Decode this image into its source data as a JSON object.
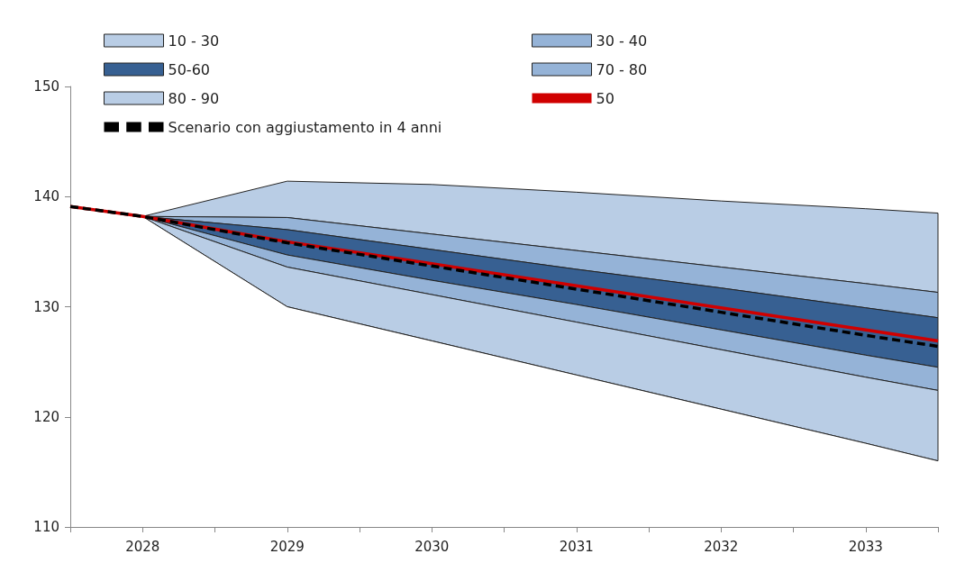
{
  "chart_data": {
    "type": "area",
    "xlim": [
      2027.5,
      2033.5
    ],
    "xticks": [
      {
        "value": 2027.5,
        "label": null
      },
      2028,
      {
        "value": 2028.5,
        "label": null
      },
      2029,
      {
        "value": 2029.5,
        "label": null
      },
      2030,
      {
        "value": 2030.5,
        "label": null
      },
      2031,
      {
        "value": 2031.5,
        "label": null
      },
      2032,
      {
        "value": 2032.5,
        "label": null
      },
      2033,
      {
        "value": 2033.5,
        "label": null
      }
    ],
    "ylim": [
      110,
      150
    ],
    "yticks": [
      110,
      120,
      130,
      140,
      150
    ],
    "grid": false,
    "legend": "top",
    "marker": "none",
    "series": [
      {
        "type": "area",
        "color": "#ffffff",
        "x": [
          2028,
          2029,
          2030,
          2031,
          2032,
          2033,
          2033.5
        ],
        "values": [
          138.2,
          130.0,
          126.9,
          123.8,
          120.7,
          117.6,
          116.0
        ]
      },
      {
        "name": "10 - 30",
        "type": "area",
        "color": "#b9cde5",
        "x": [
          2028,
          2029,
          2030,
          2031,
          2032,
          2033,
          2033.5
        ],
        "values": [
          138.2,
          133.6,
          131.1,
          128.6,
          126.1,
          123.6,
          122.4
        ]
      },
      {
        "name": "30 - 40",
        "type": "area",
        "color": "#95b3d7",
        "x": [
          2028,
          2029,
          2030,
          2031,
          2032,
          2033,
          2033.5
        ],
        "values": [
          138.2,
          134.7,
          132.4,
          130.2,
          127.9,
          125.6,
          124.5
        ]
      },
      {
        "name": "50-60",
        "type": "area",
        "color": "#376092",
        "x": [
          2028,
          2029,
          2030,
          2031,
          2032,
          2033,
          2033.5
        ],
        "values": [
          138.2,
          137.0,
          135.2,
          133.4,
          131.7,
          129.9,
          129.0
        ]
      },
      {
        "name": "70 - 80",
        "type": "area",
        "color": "#95b3d7",
        "x": [
          2028,
          2029,
          2030,
          2031,
          2032,
          2033,
          2033.5
        ],
        "values": [
          138.2,
          138.1,
          136.6,
          135.1,
          133.6,
          132.1,
          131.3
        ]
      },
      {
        "name": "80 - 90",
        "type": "area",
        "color": "#b9cde5",
        "x": [
          2028,
          2029,
          2030,
          2031,
          2032,
          2033,
          2033.5
        ],
        "values": [
          138.2,
          141.4,
          141.1,
          140.4,
          139.6,
          138.9,
          138.5
        ]
      },
      {
        "name": "50",
        "type": "line",
        "color": "#d00000",
        "line_style": "solid",
        "x": [
          2027.5,
          2028,
          2029,
          2030,
          2031,
          2032,
          2033,
          2033.5
        ],
        "values": [
          139.1,
          138.2,
          135.9,
          133.9,
          131.9,
          129.9,
          127.9,
          126.9
        ]
      },
      {
        "name": "Scenario con aggiustamento in 4 anni",
        "type": "line",
        "color": "#000000",
        "line_style": "dashed",
        "x": [
          2027.5,
          2028,
          2029,
          2030,
          2031,
          2032,
          2033,
          2033.5
        ],
        "values": [
          139.1,
          138.2,
          135.8,
          133.7,
          131.6,
          129.5,
          127.4,
          126.4
        ]
      }
    ]
  }
}
